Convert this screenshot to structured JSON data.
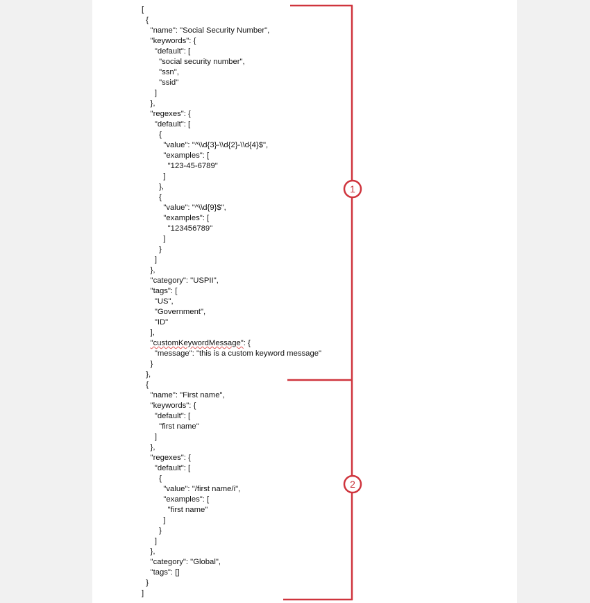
{
  "accent_color": "#cf343d",
  "code_lines": [
    "[",
    "  {",
    "    \"name\": \"Social Security Number\",",
    "    \"keywords\": {",
    "      \"default\": [",
    "        \"social security number\",",
    "        \"ssn\",",
    "        \"ssid\"",
    "      ]",
    "    },",
    "    \"regexes\": {",
    "      \"default\": [",
    "        {",
    "          \"value\": \"^\\\\d{3}-\\\\d{2}-\\\\d{4}$\",",
    "          \"examples\": [",
    "            \"123-45-6789\"",
    "          ]",
    "        },",
    "        {",
    "          \"value\": \"^\\\\d{9}$\",",
    "          \"examples\": [",
    "            \"123456789\"",
    "          ]",
    "        }",
    "      ]",
    "    },",
    "    \"category\": \"USPII\",",
    "    \"tags\": [",
    "      \"US\",",
    "      \"Government\",",
    "      \"ID\"",
    "    ],",
    "    \"customKeywordMessage\": {",
    "      \"message\": \"this is a custom keyword message\"",
    "    }",
    "  },",
    "  {",
    "    \"name\": \"First name\",",
    "    \"keywords\": {",
    "      \"default\": [",
    "        \"first name\"",
    "      ]",
    "    },",
    "    \"regexes\": {",
    "      \"default\": [",
    "        {",
    "          \"value\": \"/first name/i\",",
    "          \"examples\": [",
    "            \"first name\"",
    "          ]",
    "        }",
    "      ]",
    "    },",
    "    \"category\": \"Global\",",
    "    \"tags\": []",
    "  }",
    "]"
  ],
  "callouts": [
    {
      "label": "1"
    },
    {
      "label": "2"
    }
  ]
}
